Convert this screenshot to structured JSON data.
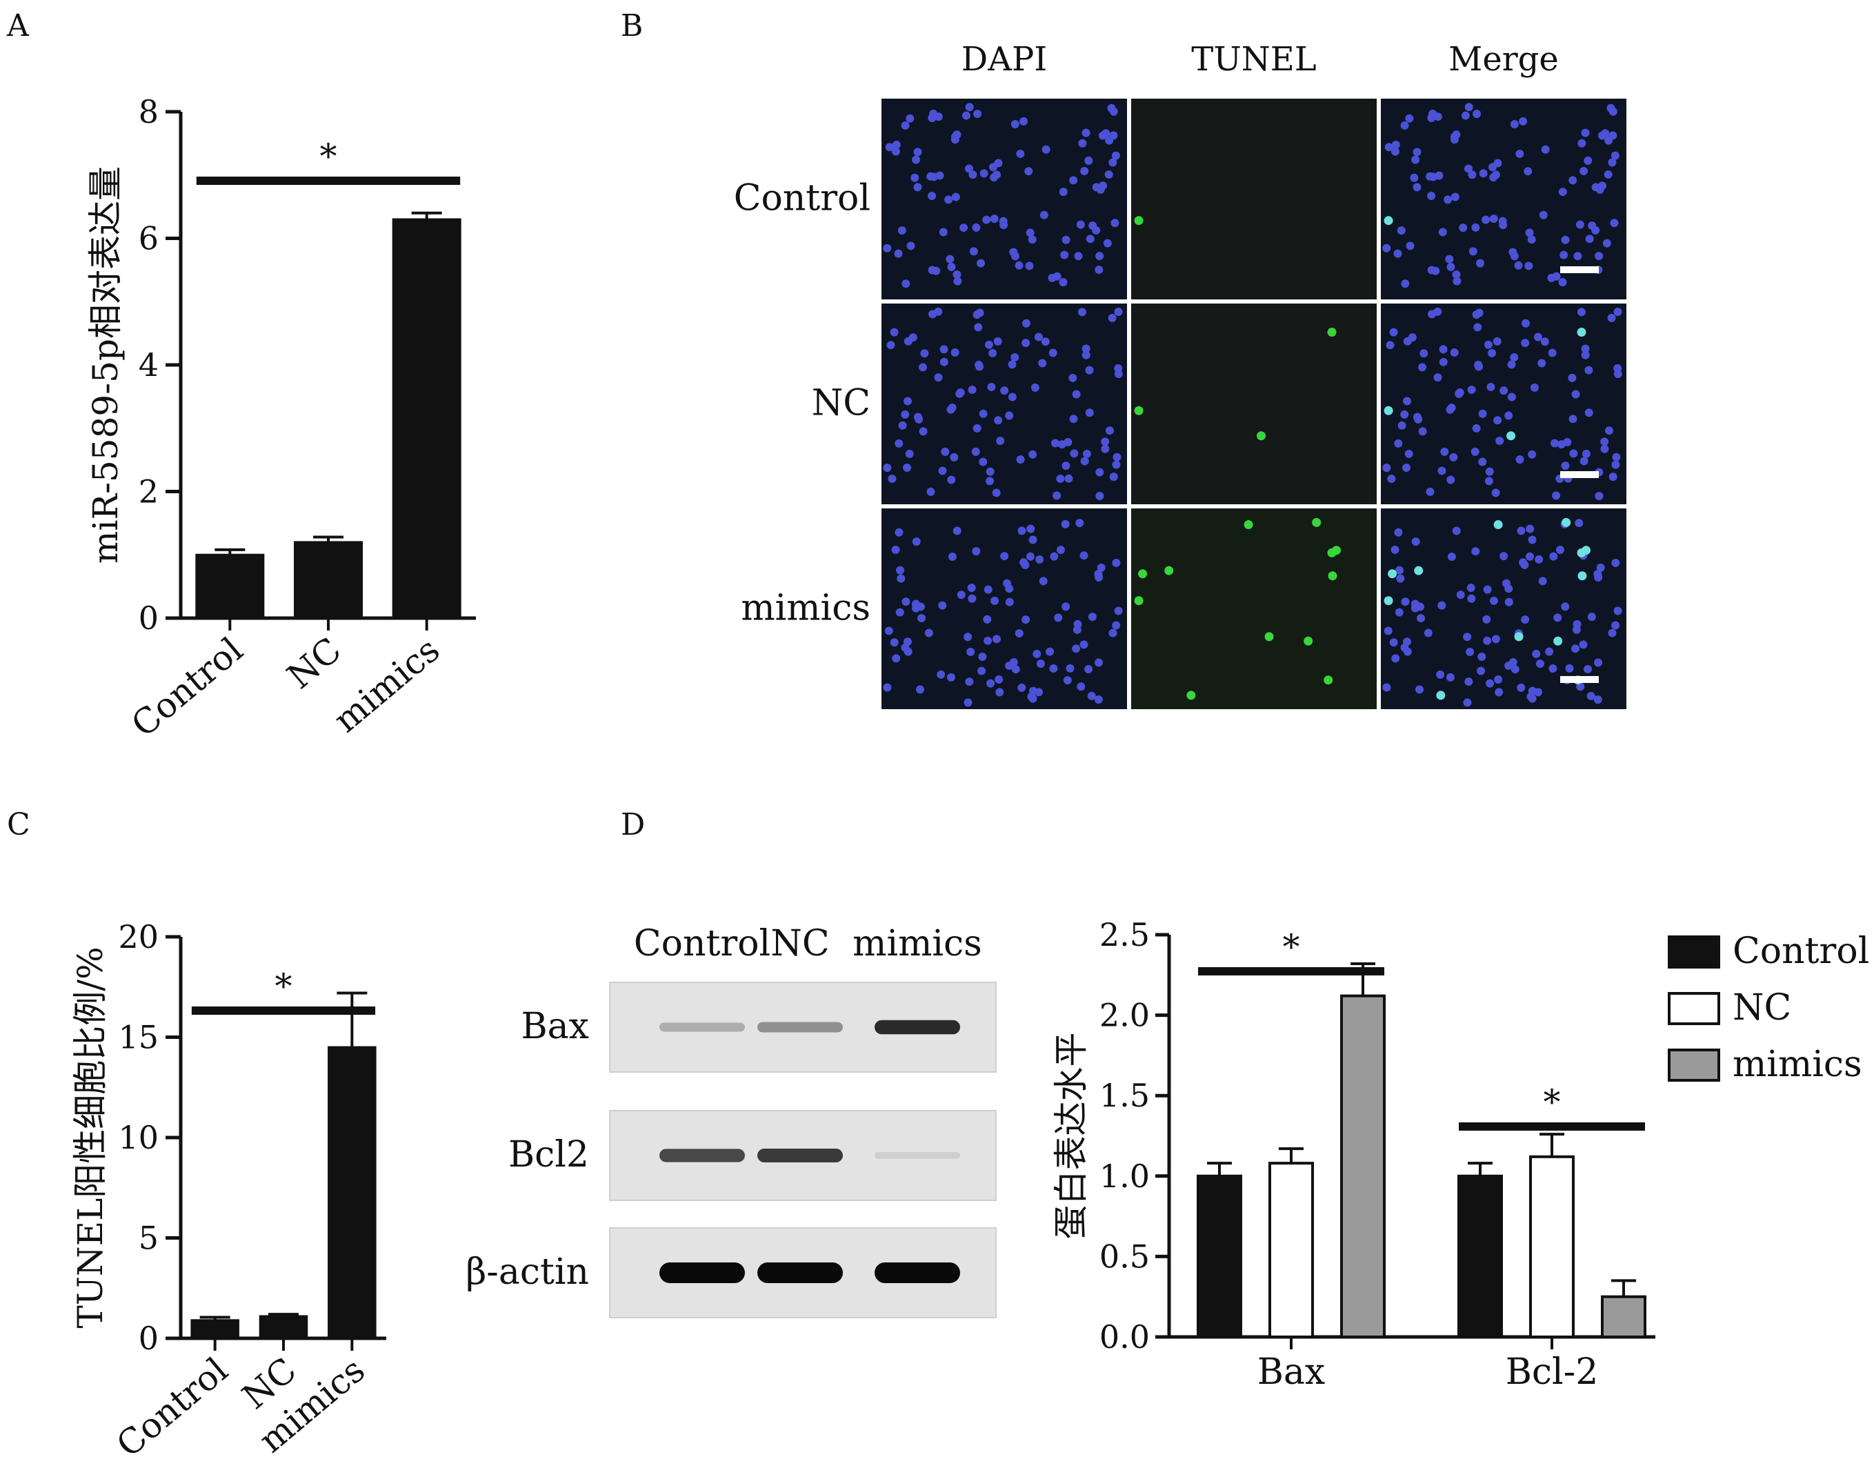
{
  "panels": {
    "A": "A",
    "B": "B",
    "C": "C",
    "D": "D"
  },
  "chart_data": [
    {
      "panel": "A",
      "type": "bar",
      "ylabel": "miR-5589-5p相对表达量",
      "categories": [
        "Control",
        "NC",
        "mimics"
      ],
      "values": [
        1.0,
        1.2,
        6.3
      ],
      "errors": [
        0.08,
        0.08,
        0.1
      ],
      "ylim": [
        0,
        8
      ],
      "yticks": [
        "0",
        "2",
        "4",
        "6",
        "8"
      ],
      "significance": [
        {
          "from": 0,
          "to": 2,
          "label": "*"
        }
      ],
      "colors": [
        "#111111",
        "#111111",
        "#111111"
      ]
    },
    {
      "panel": "C",
      "type": "bar",
      "ylabel": "TUNEL阳性细胞比例/%",
      "categories": [
        "Control",
        "NC",
        "mimics"
      ],
      "values": [
        0.9,
        1.1,
        14.5
      ],
      "errors": [
        0.15,
        0.1,
        2.7
      ],
      "ylim": [
        0,
        20
      ],
      "yticks": [
        "0",
        "5",
        "10",
        "15",
        "20"
      ],
      "significance": [
        {
          "from": 0,
          "to": 2,
          "label": "*"
        }
      ],
      "colors": [
        "#111111",
        "#111111",
        "#111111"
      ]
    },
    {
      "panel": "D",
      "type": "bar",
      "ylabel": "蛋白表达水平",
      "categories": [
        "Bax",
        "Bcl-2"
      ],
      "series": [
        {
          "name": "Control",
          "values": [
            1.0,
            1.0
          ],
          "errors": [
            0.08,
            0.08
          ],
          "color": "#111111"
        },
        {
          "name": "NC",
          "values": [
            1.08,
            1.12
          ],
          "errors": [
            0.09,
            0.14
          ],
          "color": "#ffffff"
        },
        {
          "name": "mimics",
          "values": [
            2.12,
            0.25
          ],
          "errors": [
            0.2,
            0.1
          ],
          "color": "#9a9a9a"
        }
      ],
      "ylim": [
        0,
        2.5
      ],
      "yticks": [
        "0.0",
        "0.5",
        "1.0",
        "1.5",
        "2.0",
        "2.5"
      ],
      "significance": [
        {
          "category": 0,
          "label": "*"
        },
        {
          "category": 1,
          "label": "*"
        }
      ],
      "legend_position": "top-right"
    }
  ],
  "microscopy": {
    "columns": [
      "DAPI",
      "TUNEL",
      "Merge"
    ],
    "rows": [
      "Control",
      "NC",
      "mimics"
    ],
    "green_counts": [
      1,
      3,
      12
    ]
  },
  "western": {
    "lanes": [
      "Control",
      "NC",
      "mimics"
    ],
    "bands": [
      "Bax",
      "Bcl2",
      "β-actin"
    ],
    "intensity": [
      [
        0.35,
        0.5,
        0.9
      ],
      [
        0.8,
        0.85,
        0.12
      ],
      [
        1.0,
        1.0,
        1.0
      ]
    ]
  }
}
